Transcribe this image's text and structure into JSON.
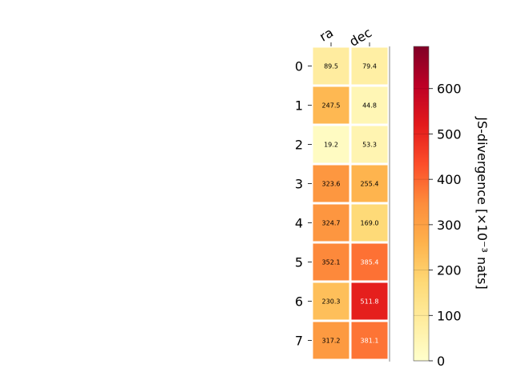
{
  "chart_data": {
    "type": "heatmap",
    "columns": [
      "ra",
      "dec"
    ],
    "rows": [
      "0",
      "1",
      "2",
      "3",
      "4",
      "5",
      "6",
      "7"
    ],
    "values": [
      [
        89.5,
        79.4
      ],
      [
        247.5,
        44.8
      ],
      [
        19.2,
        53.3
      ],
      [
        323.6,
        255.4
      ],
      [
        324.7,
        169.0
      ],
      [
        352.1,
        385.4
      ],
      [
        230.3,
        511.8
      ],
      [
        317.2,
        381.1
      ]
    ],
    "value_labels": [
      [
        "89.5",
        "79.4"
      ],
      [
        "247.5",
        "44.8"
      ],
      [
        "19.2",
        "53.3"
      ],
      [
        "323.6",
        "255.4"
      ],
      [
        "324.7",
        "169.0"
      ],
      [
        "352.1",
        "385.4"
      ],
      [
        "230.3",
        "511.8"
      ],
      [
        "317.2",
        "381.1"
      ]
    ],
    "colorbar": {
      "label": "JS-divergence [×10⁻³ nats]",
      "range": [
        0,
        693
      ],
      "ticks": [
        0,
        100,
        200,
        300,
        400,
        500,
        600
      ],
      "tick_labels": [
        "0",
        "100",
        "200",
        "300",
        "400",
        "500",
        "600"
      ],
      "colormap": "YlOrRd"
    },
    "colormap_stops": [
      "#ffffcc",
      "#ffeda0",
      "#fed976",
      "#feb24c",
      "#fd8d3c",
      "#fc4e2a",
      "#e31a1c",
      "#bd0026",
      "#800026"
    ]
  }
}
